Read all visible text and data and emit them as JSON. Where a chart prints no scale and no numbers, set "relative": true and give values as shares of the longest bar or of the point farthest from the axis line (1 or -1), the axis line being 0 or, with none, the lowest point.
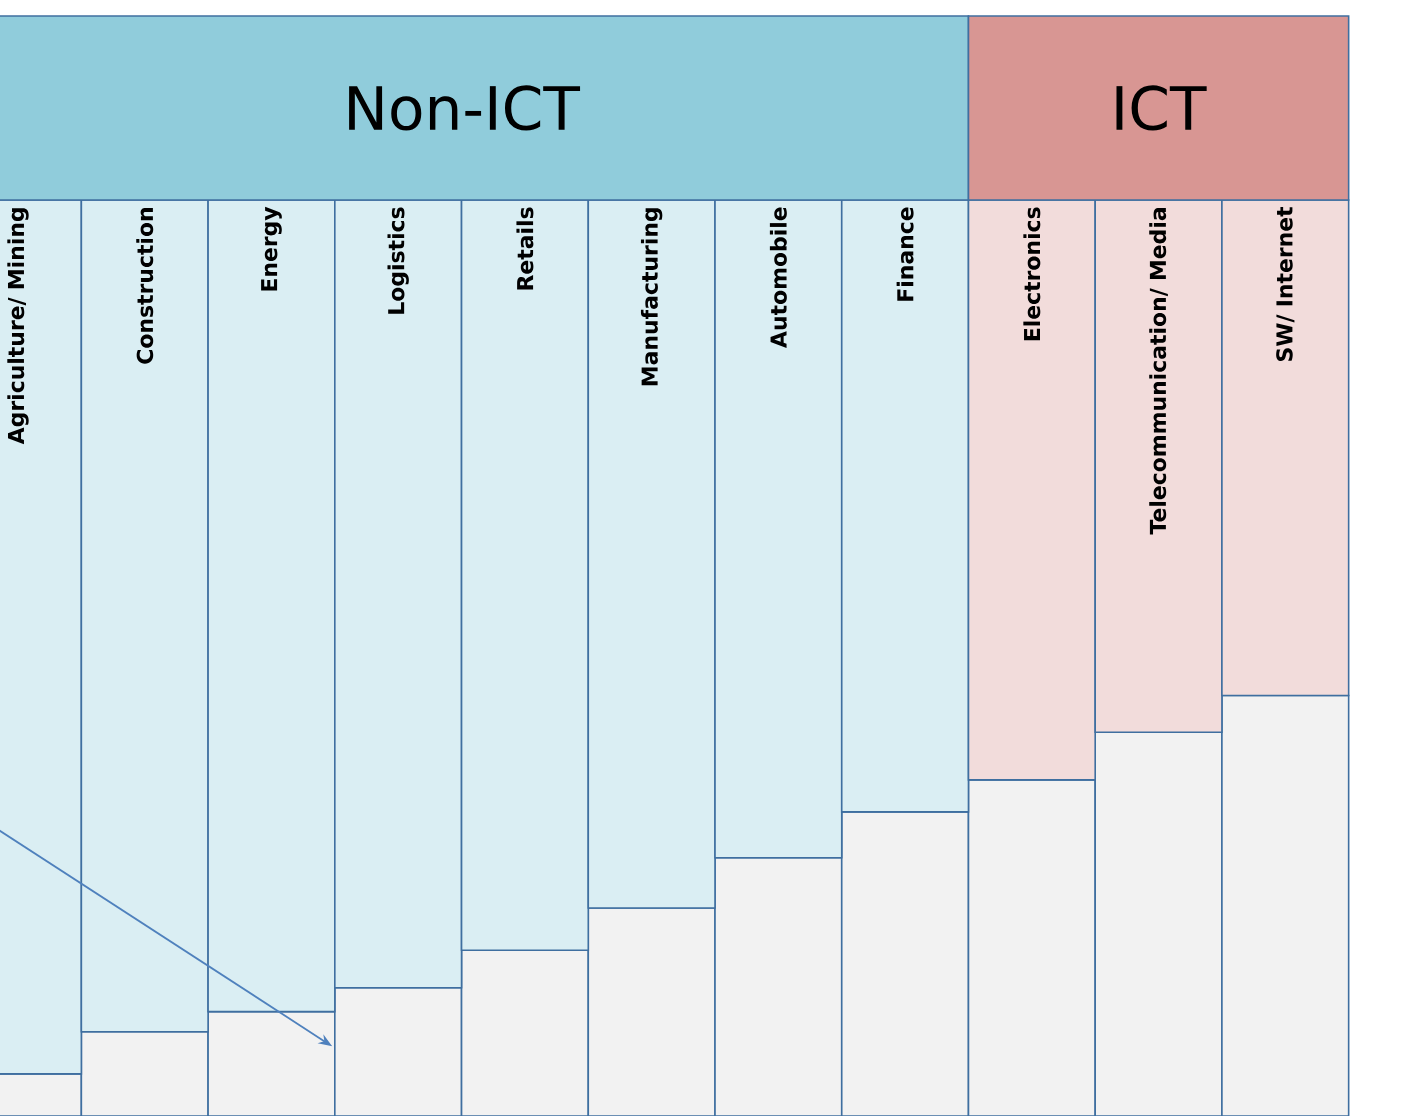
{
  "chart_data": {
    "type": "bar",
    "stacked": true,
    "relative": true,
    "categories": [
      "Agriculture/ Mining",
      "Construction",
      "Energy",
      "Logistics",
      "Retails",
      "Manufacturing",
      "Automobile",
      "Finance",
      "Electronics",
      "Telecommunication/ Media",
      "SW/ Internet"
    ],
    "series": [
      {
        "color": "#f2f2f2",
        "values": [
          0.046,
          0.092,
          0.114,
          0.14,
          0.181,
          0.227,
          0.282,
          0.332,
          0.367,
          0.419,
          0.459
        ]
      },
      {
        "colors": [
          "#daeef3",
          "#daeef3",
          "#daeef3",
          "#daeef3",
          "#daeef3",
          "#daeef3",
          "#daeef3",
          "#daeef3",
          "#f2dcdb",
          "#f2dcdb",
          "#f2dcdb"
        ],
        "values": [
          0.954,
          0.908,
          0.886,
          0.86,
          0.819,
          0.773,
          0.718,
          0.668,
          0.633,
          0.581,
          0.541
        ]
      }
    ],
    "annotations": [
      "Non-ICT",
      "ICT"
    ]
  }
}
